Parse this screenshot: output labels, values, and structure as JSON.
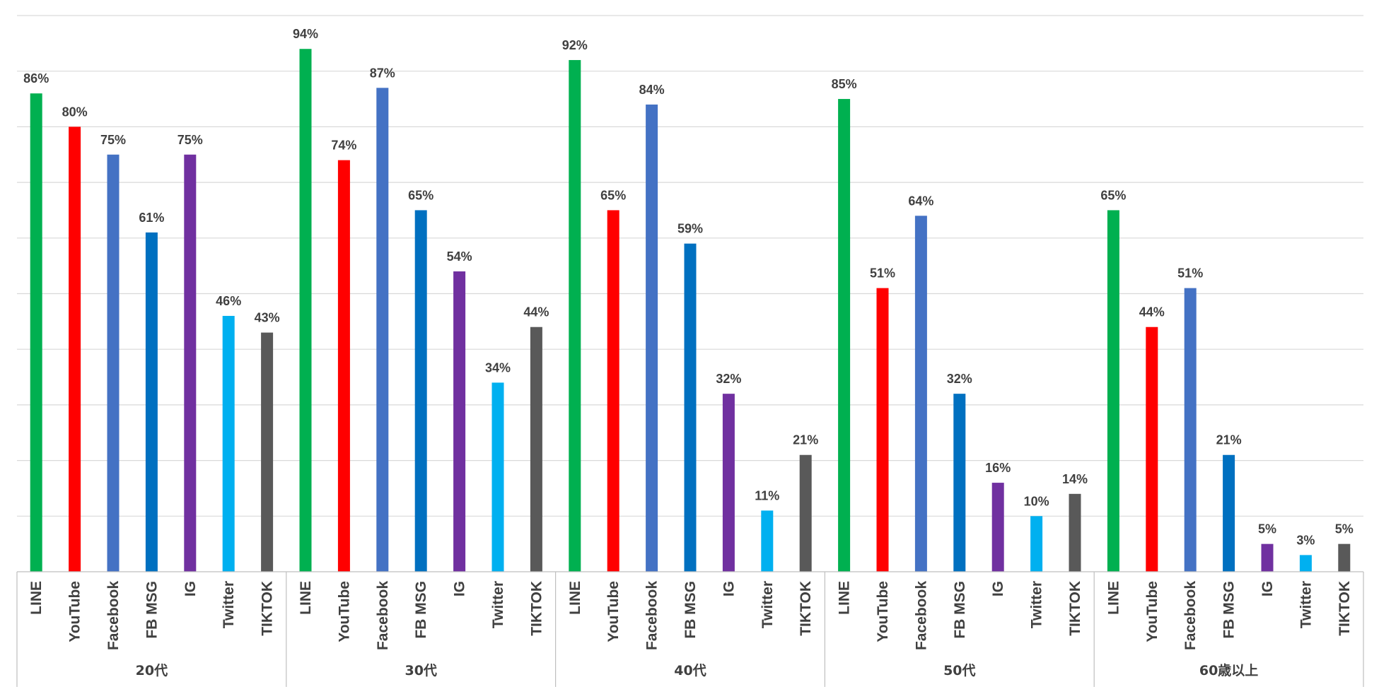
{
  "chart_data": {
    "type": "bar",
    "title": "",
    "xlabel": "",
    "ylabel": "",
    "ylim": [
      0,
      100
    ],
    "grid": true,
    "unit": "%",
    "platforms": [
      "LINE",
      "YouTube",
      "Facebook",
      "FB MSG",
      "IG",
      "Twitter",
      "TIKTOK"
    ],
    "colors": {
      "LINE": "#00b050",
      "YouTube": "#ff0000",
      "Facebook": "#4472c4",
      "FB MSG": "#0070c0",
      "IG": "#7030a0",
      "Twitter": "#00b0f0",
      "TIKTOK": "#595959"
    },
    "groups": [
      {
        "label": "20代",
        "values": [
          86,
          80,
          75,
          61,
          75,
          46,
          43
        ]
      },
      {
        "label": "30代",
        "values": [
          94,
          74,
          87,
          65,
          54,
          34,
          44
        ]
      },
      {
        "label": "40代",
        "values": [
          92,
          65,
          84,
          59,
          32,
          11,
          21
        ]
      },
      {
        "label": "50代",
        "values": [
          85,
          51,
          64,
          32,
          16,
          10,
          14
        ]
      },
      {
        "label": "60歳以上",
        "values": [
          65,
          44,
          51,
          21,
          5,
          3,
          5
        ]
      }
    ]
  }
}
